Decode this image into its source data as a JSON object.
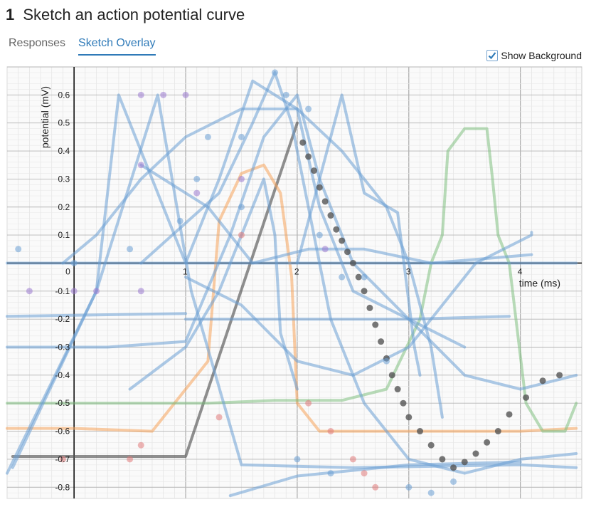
{
  "header": {
    "number": "1",
    "title": "Sketch an action potential curve"
  },
  "tabs": [
    {
      "label": "Responses",
      "active": false
    },
    {
      "label": "Sketch Overlay",
      "active": true
    }
  ],
  "toggle": {
    "label": "Show Background",
    "checked": true
  },
  "chart_data": {
    "type": "line",
    "xlabel": "time (ms)",
    "ylabel": "potential (mV)",
    "xlim": [
      -0.6,
      4.55
    ],
    "ylim": [
      -0.84,
      0.7
    ],
    "x_ticks": [
      "0",
      "1",
      "2",
      "3",
      "4"
    ],
    "y_ticks": [
      "0.6",
      "0.5",
      "0.4",
      "0.3",
      "0.2",
      "0.1",
      "-0.1",
      "-0.2",
      "-0.3",
      "-0.4",
      "-0.5",
      "-0.6",
      "-0.7",
      "-0.8"
    ],
    "grid": true,
    "colors": {
      "blue": "#6a9fd4",
      "orange": "#f5a25a",
      "green": "#7fbf7f",
      "gray": "#555555",
      "red": "#e07a7a",
      "purple": "#9b7ad0"
    },
    "series": [
      {
        "color": "gray",
        "points": [
          [
            -0.55,
            -0.69
          ],
          [
            0,
            -0.69
          ],
          [
            0.6,
            -0.69
          ],
          [
            1,
            -0.69
          ],
          [
            2,
            0.5
          ]
        ]
      },
      {
        "color": "orange",
        "points": [
          [
            -0.6,
            -0.59
          ],
          [
            0,
            -0.59
          ],
          [
            0.7,
            -0.6
          ],
          [
            1.2,
            -0.35
          ],
          [
            1.3,
            0.15
          ],
          [
            1.5,
            0.32
          ],
          [
            1.7,
            0.35
          ],
          [
            1.85,
            0.25
          ],
          [
            1.95,
            -0.05
          ],
          [
            2,
            -0.5
          ],
          [
            2.2,
            -0.6
          ],
          [
            3,
            -0.6
          ],
          [
            4,
            -0.6
          ],
          [
            4.5,
            -0.59
          ]
        ]
      },
      {
        "color": "green",
        "points": [
          [
            -0.6,
            -0.5
          ],
          [
            0.5,
            -0.5
          ],
          [
            1.2,
            -0.5
          ],
          [
            1.8,
            -0.49
          ],
          [
            2.4,
            -0.49
          ],
          [
            2.8,
            -0.45
          ],
          [
            3.1,
            -0.2
          ],
          [
            3.2,
            0.0
          ],
          [
            3.3,
            0.1
          ],
          [
            3.35,
            0.4
          ],
          [
            3.5,
            0.48
          ],
          [
            3.7,
            0.48
          ],
          [
            3.75,
            0.3
          ],
          [
            3.8,
            0.1
          ],
          [
            3.9,
            0.0
          ],
          [
            4.05,
            -0.5
          ],
          [
            4.2,
            -0.6
          ],
          [
            4.4,
            -0.6
          ],
          [
            4.5,
            -0.5
          ]
        ]
      },
      {
        "color": "blue",
        "points": [
          [
            -0.6,
            0
          ],
          [
            0.5,
            0
          ],
          [
            1,
            0
          ],
          [
            2,
            0
          ],
          [
            3,
            0
          ],
          [
            4,
            0
          ],
          [
            4.5,
            0
          ]
        ]
      },
      {
        "color": "blue",
        "points": [
          [
            -0.6,
            -0.75
          ],
          [
            0.2,
            -0.1
          ],
          [
            0.4,
            0.6
          ],
          [
            1,
            0.0
          ],
          [
            1.3,
            0.3
          ],
          [
            1.6,
            0.65
          ],
          [
            2,
            0.55
          ],
          [
            2.2,
            0.2
          ],
          [
            2.5,
            -0.1
          ],
          [
            3,
            -0.2
          ],
          [
            3.5,
            -0.4
          ],
          [
            4,
            -0.45
          ],
          [
            4.5,
            -0.4
          ]
        ]
      },
      {
        "color": "blue",
        "points": [
          [
            -0.55,
            -0.73
          ],
          [
            0.2,
            -0.1
          ],
          [
            0.75,
            0.6
          ],
          [
            1.05,
            -0.1
          ],
          [
            1.5,
            -0.72
          ],
          [
            2.5,
            -0.73
          ],
          [
            4,
            -0.72
          ],
          [
            4.5,
            -0.73
          ]
        ]
      },
      {
        "color": "blue",
        "points": [
          [
            0.6,
            0.0
          ],
          [
            1.3,
            0.25
          ],
          [
            1.6,
            0.5
          ],
          [
            1.8,
            0.68
          ],
          [
            1.95,
            0.5
          ],
          [
            2.1,
            0.2
          ],
          [
            2.3,
            -0.2
          ],
          [
            2.6,
            -0.5
          ],
          [
            3,
            -0.7
          ],
          [
            3.5,
            -0.75
          ],
          [
            4,
            -0.7
          ],
          [
            4.5,
            -0.68
          ]
        ]
      },
      {
        "color": "blue",
        "points": [
          [
            -0.6,
            -0.19
          ],
          [
            1,
            -0.18
          ]
        ]
      },
      {
        "color": "blue",
        "points": [
          [
            1,
            -0.2
          ],
          [
            2,
            -0.2
          ],
          [
            3,
            -0.2
          ],
          [
            3.9,
            -0.19
          ]
        ]
      },
      {
        "color": "blue",
        "points": [
          [
            -0.6,
            -0.3
          ],
          [
            0.3,
            -0.3
          ],
          [
            1,
            -0.28
          ],
          [
            1.4,
            0.1
          ],
          [
            1.7,
            0.45
          ],
          [
            2,
            0.6
          ],
          [
            2.2,
            0.3
          ],
          [
            2.5,
            0.0
          ],
          [
            3,
            -0.2
          ],
          [
            3.5,
            -0.3
          ]
        ]
      },
      {
        "color": "blue",
        "points": [
          [
            1,
            -0.05
          ],
          [
            1.5,
            -0.15
          ],
          [
            2,
            -0.35
          ],
          [
            2.5,
            -0.4
          ],
          [
            3,
            -0.3
          ],
          [
            3.6,
            0.0
          ],
          [
            4.1,
            0.1
          ],
          [
            4.1,
            0.11
          ]
        ]
      },
      {
        "color": "blue",
        "points": [
          [
            2,
            0.0
          ],
          [
            2.4,
            0.6
          ],
          [
            2.6,
            0.25
          ],
          [
            2.9,
            0.18
          ],
          [
            3.05,
            -0.3
          ],
          [
            3.1,
            -0.4
          ]
        ]
      },
      {
        "color": "blue",
        "points": [
          [
            0.5,
            -0.45
          ],
          [
            1,
            -0.3
          ],
          [
            1.3,
            -0.1
          ],
          [
            1.5,
            0.1
          ],
          [
            1.7,
            0.3
          ],
          [
            1.8,
            0.1
          ],
          [
            1.85,
            -0.25
          ],
          [
            2.0,
            -0.45
          ]
        ]
      },
      {
        "color": "blue",
        "points": [
          [
            1.4,
            -0.83
          ],
          [
            2,
            -0.76
          ],
          [
            3,
            -0.72
          ],
          [
            4,
            -0.71
          ]
        ]
      },
      {
        "color": "blue",
        "points": [
          [
            0.6,
            0.35
          ],
          [
            1.2,
            0.2
          ],
          [
            1.6,
            0.0
          ],
          [
            2.1,
            0.05
          ],
          [
            2.6,
            0.05
          ],
          [
            3.2,
            0.0
          ],
          [
            4.1,
            0.03
          ]
        ]
      },
      {
        "color": "blue",
        "points": [
          [
            -0.1,
            0.0
          ],
          [
            0.2,
            0.1
          ],
          [
            0.6,
            0.3
          ],
          [
            1,
            0.45
          ],
          [
            1.5,
            0.55
          ],
          [
            2.0,
            0.55
          ],
          [
            2.4,
            0.4
          ],
          [
            2.8,
            0.2
          ],
          [
            3.0,
            0.0
          ],
          [
            3.2,
            -0.3
          ],
          [
            3.3,
            -0.55
          ]
        ]
      }
    ],
    "dots": [
      {
        "color": "gray",
        "points": [
          [
            2.05,
            0.43
          ],
          [
            2.1,
            0.38
          ],
          [
            2.15,
            0.33
          ],
          [
            2.2,
            0.27
          ],
          [
            2.25,
            0.22
          ],
          [
            2.3,
            0.17
          ],
          [
            2.35,
            0.12
          ],
          [
            2.4,
            0.08
          ],
          [
            2.45,
            0.04
          ],
          [
            2.5,
            0.0
          ],
          [
            2.55,
            -0.05
          ],
          [
            2.6,
            -0.1
          ],
          [
            2.65,
            -0.16
          ],
          [
            2.7,
            -0.22
          ],
          [
            2.75,
            -0.28
          ],
          [
            2.8,
            -0.34
          ],
          [
            2.85,
            -0.4
          ],
          [
            2.9,
            -0.45
          ],
          [
            2.95,
            -0.5
          ],
          [
            3.0,
            -0.55
          ],
          [
            3.1,
            -0.6
          ],
          [
            3.2,
            -0.65
          ],
          [
            3.3,
            -0.7
          ],
          [
            3.4,
            -0.73
          ],
          [
            3.5,
            -0.71
          ],
          [
            3.6,
            -0.68
          ],
          [
            3.7,
            -0.64
          ],
          [
            3.8,
            -0.6
          ],
          [
            3.9,
            -0.54
          ],
          [
            4.05,
            -0.48
          ],
          [
            4.2,
            -0.42
          ],
          [
            4.35,
            -0.4
          ]
        ]
      },
      {
        "color": "purple",
        "points": [
          [
            0.6,
            0.6
          ],
          [
            0.8,
            0.6
          ],
          [
            1.0,
            0.6
          ],
          [
            -0.4,
            -0.1
          ],
          [
            0.0,
            -0.1
          ],
          [
            0.2,
            -0.1
          ],
          [
            0.6,
            -0.1
          ],
          [
            0.6,
            0.35
          ],
          [
            1.1,
            0.25
          ],
          [
            1.5,
            0.3
          ],
          [
            2.25,
            0.05
          ]
        ]
      },
      {
        "color": "red",
        "points": [
          [
            1.5,
            0.1
          ],
          [
            2.1,
            -0.5
          ],
          [
            2.3,
            -0.6
          ],
          [
            2.5,
            -0.7
          ],
          [
            2.6,
            -0.75
          ],
          [
            2.7,
            -0.8
          ],
          [
            0.6,
            -0.65
          ],
          [
            1.3,
            -0.55
          ],
          [
            -0.1,
            -0.7
          ],
          [
            0.5,
            -0.7
          ]
        ]
      },
      {
        "color": "blue",
        "points": [
          [
            -0.5,
            0.05
          ],
          [
            0.0,
            0.0
          ],
          [
            0.5,
            0.05
          ],
          [
            1.1,
            0.3
          ],
          [
            1.5,
            0.45
          ],
          [
            1.8,
            0.68
          ],
          [
            1.9,
            0.6
          ],
          [
            2.1,
            0.55
          ],
          [
            1.2,
            0.45
          ],
          [
            0.95,
            0.15
          ],
          [
            1.5,
            0.2
          ],
          [
            2.2,
            0.1
          ],
          [
            2.4,
            -0.05
          ],
          [
            2.6,
            -0.05
          ],
          [
            2.8,
            -0.35
          ],
          [
            3.0,
            -0.8
          ],
          [
            3.2,
            -0.82
          ],
          [
            3.4,
            -0.78
          ],
          [
            2.0,
            -0.7
          ],
          [
            2.3,
            -0.75
          ]
        ]
      }
    ]
  }
}
